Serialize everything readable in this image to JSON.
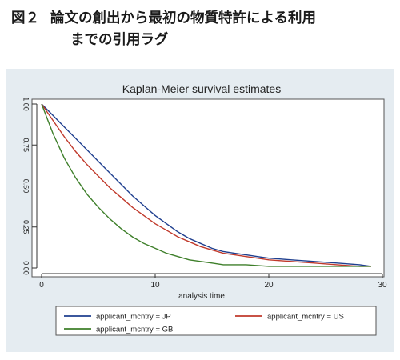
{
  "caption": {
    "line1_num": "図２",
    "line1_text": "論文の創出から最初の物質特許による利用",
    "line2_text": "までの引用ラグ"
  },
  "chart_data": {
    "type": "line",
    "title": "Kaplan-Meier survival estimates",
    "xlabel": "analysis time",
    "ylabel": "",
    "xlim": [
      0,
      30
    ],
    "ylim": [
      0,
      1
    ],
    "x_ticks": [
      0,
      10,
      20,
      30
    ],
    "y_ticks": [
      "0.00",
      "0.25",
      "0.50",
      "0.75",
      "1.00"
    ],
    "legend_position": "bottom",
    "grid": false,
    "series": [
      {
        "name": "applicant_mcntry = JP",
        "color": "#1f3f8f",
        "x": [
          0,
          1,
          2,
          3,
          4,
          5,
          6,
          7,
          8,
          9,
          10,
          11,
          12,
          13,
          14,
          15,
          16,
          17,
          18,
          19,
          20,
          22,
          24,
          26,
          28,
          29
        ],
        "y": [
          1.0,
          0.93,
          0.86,
          0.79,
          0.72,
          0.65,
          0.58,
          0.51,
          0.44,
          0.38,
          0.32,
          0.27,
          0.22,
          0.18,
          0.15,
          0.12,
          0.1,
          0.09,
          0.08,
          0.07,
          0.06,
          0.05,
          0.04,
          0.03,
          0.02,
          0.01
        ]
      },
      {
        "name": "applicant_mcntry = US",
        "color": "#c0392b",
        "x": [
          0,
          1,
          2,
          3,
          4,
          5,
          6,
          7,
          8,
          9,
          10,
          11,
          12,
          13,
          14,
          15,
          16,
          17,
          18,
          19,
          20,
          22,
          24,
          26,
          28,
          29
        ],
        "y": [
          1.0,
          0.9,
          0.8,
          0.71,
          0.63,
          0.56,
          0.49,
          0.43,
          0.37,
          0.32,
          0.27,
          0.23,
          0.19,
          0.16,
          0.13,
          0.11,
          0.09,
          0.08,
          0.07,
          0.06,
          0.05,
          0.04,
          0.03,
          0.02,
          0.01,
          0.01
        ]
      },
      {
        "name": "applicant_mcntry = GB",
        "color": "#3e7f2a",
        "x": [
          0,
          1,
          2,
          3,
          4,
          5,
          6,
          7,
          8,
          9,
          10,
          11,
          12,
          13,
          14,
          15,
          16,
          18,
          20,
          24,
          29
        ],
        "y": [
          1.0,
          0.82,
          0.67,
          0.55,
          0.45,
          0.37,
          0.3,
          0.24,
          0.19,
          0.15,
          0.12,
          0.09,
          0.07,
          0.05,
          0.04,
          0.03,
          0.02,
          0.02,
          0.01,
          0.01,
          0.01
        ]
      }
    ]
  }
}
